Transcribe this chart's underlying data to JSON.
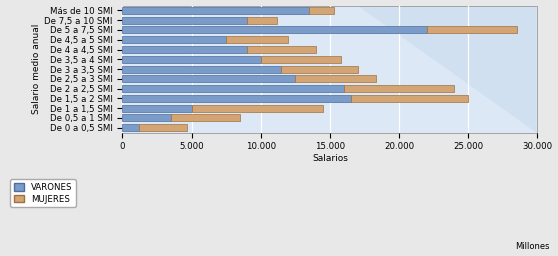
{
  "categories": [
    "Más de 10 SMI",
    "De 7,5 a 10 SMI",
    "De 5 a 7,5 SMI",
    "De 4,5 a 5 SMI",
    "De 4 a 4,5 SMI",
    "De 3,5 a 4 SMI",
    "De 3 a 3,5 SMI",
    "De 2,5 a 3 SMI",
    "De 2 a 2,5 SMI",
    "De 1,5 a 2 SMI",
    "De 1 a 1,5 SMI",
    "De 0,5 a 1 SMI",
    "De 0 a 0,5 SMI"
  ],
  "varones": [
    13500,
    9000,
    22000,
    7500,
    9000,
    10000,
    11500,
    12500,
    16000,
    16500,
    5000,
    3500,
    1200
  ],
  "mujeres": [
    1800,
    2200,
    6500,
    4500,
    5000,
    5800,
    5500,
    5800,
    8000,
    8500,
    9500,
    5000,
    3500
  ],
  "color_varones": "#7B9CC8",
  "color_varones_edge": "#4A6EA0",
  "color_mujeres": "#D4A574",
  "color_mujeres_edge": "#A07040",
  "xlim": [
    0,
    30000
  ],
  "xticks": [
    0,
    5000,
    10000,
    15000,
    20000,
    25000,
    30000
  ],
  "xtick_labels": [
    "0",
    "5.000",
    "10.000",
    "15.000",
    "20.000",
    "25.000",
    "30.000"
  ],
  "xlabel": "Salarios",
  "ylabel": "Salario medio anual",
  "xlabel_right": "Millones",
  "legend_varones": "VARONES",
  "legend_mujeres": "MUJERES",
  "bar_height": 0.72,
  "bg_axes": "#DCE8F5",
  "bg_fig": "#E8E8E8"
}
